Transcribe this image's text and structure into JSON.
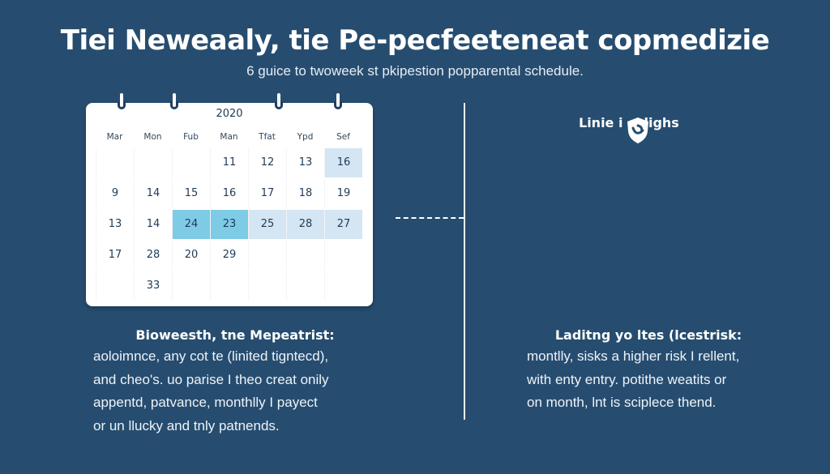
{
  "header": {
    "title": "Tiei Neweaaly, tie Pe-pecfeeteneat copmedizie",
    "subtitle": "6 guice to twoweek st pkipestion popparental schedule."
  },
  "calendar": {
    "year": "2020",
    "weekdays": [
      "Mar",
      "Mon",
      "Fub",
      "Man",
      "Tfat",
      "Ypd",
      "Sef"
    ],
    "rows": [
      [
        "",
        "",
        "",
        "11",
        "12",
        "13",
        "16"
      ],
      [
        "9",
        "14",
        "15",
        "16",
        "17",
        "18",
        "19"
      ],
      [
        "13",
        "14",
        "24",
        "23",
        "25",
        "28",
        "27"
      ],
      [
        "17",
        "28",
        "20",
        "29",
        "",
        "",
        ""
      ],
      [
        "",
        "33",
        "",
        "",
        "",
        "",
        ""
      ]
    ],
    "highlight_light": [
      [
        0,
        6
      ],
      [
        2,
        4
      ],
      [
        2,
        5
      ],
      [
        2,
        6
      ]
    ],
    "highlight_strong": [
      [
        2,
        2
      ],
      [
        2,
        3
      ]
    ],
    "colors": {
      "light": "#d4e6f3",
      "strong": "#7ecbe6",
      "background": "#264d70"
    }
  },
  "right_header": {
    "label_before": "Linie i",
    "label_after": "lighs",
    "icon": "shield-icon"
  },
  "left_panel": {
    "heading": "Bioweesth, tne Mepeatrist:",
    "lines": [
      "aoloimnce, any cot te (linited tigntecd),",
      "and cheo's. uo parise I theo creat onily",
      "appentd, patvance, monthlly I payect",
      "or un llucky and tnly patnends."
    ]
  },
  "right_panel": {
    "heading": "Laditng yo ltes (lcestrisk:",
    "lines": [
      "montlly, sisks a higher risk I rellent,",
      "with enty entry. potithe weatits or",
      "on month, lnt is sciplece thend."
    ]
  }
}
